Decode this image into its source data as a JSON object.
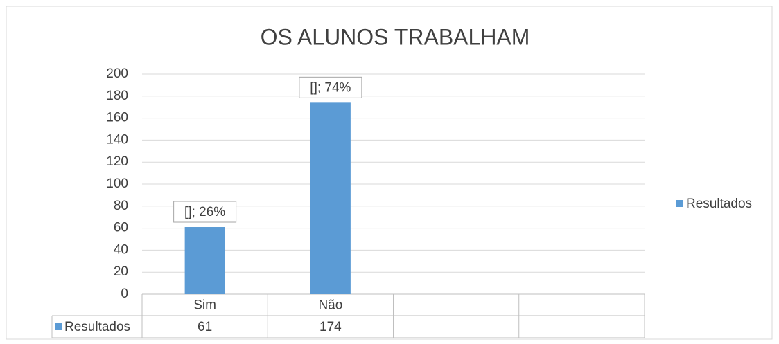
{
  "chart_data": {
    "type": "bar",
    "title": "OS ALUNOS TRABALHAM",
    "categories": [
      "Sim",
      "Não",
      null,
      null
    ],
    "series": [
      {
        "name": "Resultados",
        "color": "#5b9bd5",
        "values": [
          61,
          174,
          null,
          null
        ]
      }
    ],
    "annotations": [
      "[]; 26%",
      "[]; 74%"
    ],
    "ylim": [
      0,
      200
    ],
    "yticks": [
      0,
      20,
      40,
      60,
      80,
      100,
      120,
      140,
      160,
      180,
      200
    ],
    "grid": true,
    "legend": "right",
    "data_table": true
  }
}
